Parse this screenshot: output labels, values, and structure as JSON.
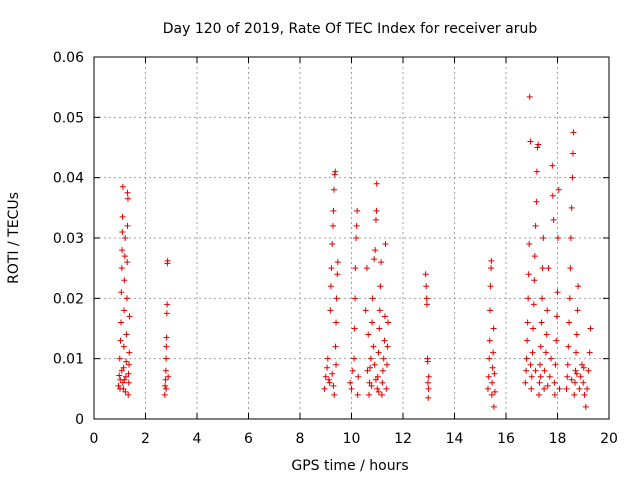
{
  "chart_data": {
    "type": "scatter",
    "title": "Day 120 of 2019, Rate Of TEC Index for receiver arub",
    "xlabel": "GPS time / hours",
    "ylabel": "ROTI / TECUs",
    "xlim": [
      0,
      20
    ],
    "ylim": [
      0,
      0.06
    ],
    "xticks": [
      "0",
      "2",
      "4",
      "6",
      "8",
      "10",
      "12",
      "14",
      "16",
      "18",
      "20"
    ],
    "yticks": [
      "0",
      "0.01",
      "0.02",
      "0.03",
      "0.04",
      "0.05",
      "0.06"
    ],
    "grid": true,
    "marker": "+",
    "color": "#e00000",
    "series": [
      {
        "points": [
          [
            0.95,
            0.0055
          ],
          [
            0.98,
            0.0072
          ],
          [
            1.0,
            0.01
          ],
          [
            1.02,
            0.0065
          ],
          [
            1.03,
            0.013
          ],
          [
            1.05,
            0.016
          ],
          [
            1.06,
            0.021
          ],
          [
            1.08,
            0.025
          ],
          [
            1.09,
            0.028
          ],
          [
            1.1,
            0.031
          ],
          [
            1.11,
            0.0335
          ],
          [
            1.12,
            0.0385
          ],
          [
            1.14,
            0.005
          ],
          [
            1.15,
            0.0085
          ],
          [
            1.16,
            0.012
          ],
          [
            1.17,
            0.018
          ],
          [
            1.18,
            0.023
          ],
          [
            1.2,
            0.027
          ],
          [
            1.21,
            0.03
          ],
          [
            1.22,
            0.0045
          ],
          [
            1.24,
            0.007
          ],
          [
            1.25,
            0.0095
          ],
          [
            1.26,
            0.014
          ],
          [
            1.28,
            0.02
          ],
          [
            1.29,
            0.026
          ],
          [
            1.3,
            0.032
          ],
          [
            1.32,
            0.0365
          ],
          [
            1.33,
            0.004
          ],
          [
            1.35,
            0.006
          ],
          [
            1.36,
            0.009
          ],
          [
            1.37,
            0.011
          ],
          [
            1.38,
            0.017
          ],
          [
            1.3,
            0.0375
          ],
          [
            1.12,
            0.006
          ],
          [
            1.08,
            0.008
          ],
          [
            1.18,
            0.0065
          ],
          [
            1.34,
            0.0075
          ],
          [
            1.01,
            0.005
          ],
          [
            2.75,
            0.004
          ],
          [
            2.76,
            0.0055
          ],
          [
            2.78,
            0.0065
          ],
          [
            2.79,
            0.008
          ],
          [
            2.8,
            0.01
          ],
          [
            2.81,
            0.012
          ],
          [
            2.82,
            0.0135
          ],
          [
            2.83,
            0.0175
          ],
          [
            2.84,
            0.019
          ],
          [
            2.85,
            0.0258
          ],
          [
            2.86,
            0.0262
          ],
          [
            2.8,
            0.005
          ],
          [
            2.88,
            0.007
          ],
          [
            8.95,
            0.005
          ],
          [
            9.0,
            0.007
          ],
          [
            9.05,
            0.0085
          ],
          [
            9.08,
            0.01
          ],
          [
            9.12,
            0.0065
          ],
          [
            9.18,
            0.018
          ],
          [
            9.2,
            0.022
          ],
          [
            9.22,
            0.025
          ],
          [
            9.25,
            0.029
          ],
          [
            9.28,
            0.032
          ],
          [
            9.3,
            0.0345
          ],
          [
            9.32,
            0.038
          ],
          [
            9.35,
            0.0405
          ],
          [
            9.37,
            0.041
          ],
          [
            9.33,
            0.004
          ],
          [
            9.38,
            0.012
          ],
          [
            9.4,
            0.016
          ],
          [
            9.42,
            0.02
          ],
          [
            9.45,
            0.024
          ],
          [
            9.47,
            0.026
          ],
          [
            9.3,
            0.0055
          ],
          [
            9.4,
            0.009
          ],
          [
            9.25,
            0.0075
          ],
          [
            9.15,
            0.006
          ],
          [
            9.95,
            0.006
          ],
          [
            10.0,
            0.005
          ],
          [
            10.05,
            0.008
          ],
          [
            10.1,
            0.01
          ],
          [
            10.12,
            0.015
          ],
          [
            10.14,
            0.02
          ],
          [
            10.15,
            0.025
          ],
          [
            10.18,
            0.03
          ],
          [
            10.2,
            0.032
          ],
          [
            10.22,
            0.0345
          ],
          [
            10.24,
            0.004
          ],
          [
            10.26,
            0.007
          ],
          [
            10.55,
            0.018
          ],
          [
            10.6,
            0.025
          ],
          [
            10.62,
            0.008
          ],
          [
            10.65,
            0.014
          ],
          [
            10.68,
            0.004
          ],
          [
            10.7,
            0.006
          ],
          [
            10.75,
            0.01
          ],
          [
            10.8,
            0.016
          ],
          [
            10.82,
            0.02
          ],
          [
            10.85,
            0.012
          ],
          [
            10.88,
            0.0265
          ],
          [
            10.9,
            0.009
          ],
          [
            10.92,
            0.028
          ],
          [
            10.95,
            0.033
          ],
          [
            10.97,
            0.0345
          ],
          [
            10.98,
            0.039
          ],
          [
            11.0,
            0.005
          ],
          [
            11.02,
            0.007
          ],
          [
            11.05,
            0.011
          ],
          [
            11.08,
            0.015
          ],
          [
            11.1,
            0.018
          ],
          [
            11.12,
            0.022
          ],
          [
            11.15,
            0.026
          ],
          [
            11.18,
            0.004
          ],
          [
            11.2,
            0.006
          ],
          [
            11.22,
            0.008
          ],
          [
            11.25,
            0.01
          ],
          [
            11.28,
            0.013
          ],
          [
            11.3,
            0.017
          ],
          [
            11.32,
            0.029
          ],
          [
            11.35,
            0.005
          ],
          [
            11.38,
            0.009
          ],
          [
            11.4,
            0.012
          ],
          [
            11.42,
            0.016
          ],
          [
            10.78,
            0.0055
          ],
          [
            10.95,
            0.0065
          ],
          [
            11.06,
            0.0045
          ],
          [
            10.72,
            0.0085
          ],
          [
            12.88,
            0.024
          ],
          [
            12.9,
            0.022
          ],
          [
            12.92,
            0.02
          ],
          [
            12.93,
            0.019
          ],
          [
            12.95,
            0.01
          ],
          [
            12.96,
            0.0095
          ],
          [
            12.97,
            0.006
          ],
          [
            12.98,
            0.0035
          ],
          [
            12.99,
            0.005
          ],
          [
            13.0,
            0.007
          ],
          [
            15.3,
            0.005
          ],
          [
            15.33,
            0.007
          ],
          [
            15.35,
            0.01
          ],
          [
            15.37,
            0.013
          ],
          [
            15.38,
            0.018
          ],
          [
            15.4,
            0.022
          ],
          [
            15.42,
            0.025
          ],
          [
            15.43,
            0.0262
          ],
          [
            15.45,
            0.004
          ],
          [
            15.46,
            0.006
          ],
          [
            15.48,
            0.0085
          ],
          [
            15.5,
            0.011
          ],
          [
            15.52,
            0.015
          ],
          [
            15.53,
            0.002
          ],
          [
            15.55,
            0.0075
          ],
          [
            15.57,
            0.0045
          ],
          [
            16.75,
            0.006
          ],
          [
            16.78,
            0.008
          ],
          [
            16.8,
            0.01
          ],
          [
            16.82,
            0.013
          ],
          [
            16.84,
            0.016
          ],
          [
            16.86,
            0.02
          ],
          [
            16.88,
            0.024
          ],
          [
            16.9,
            0.029
          ],
          [
            16.92,
            0.0534
          ],
          [
            16.95,
            0.046
          ],
          [
            16.98,
            0.005
          ],
          [
            17.0,
            0.007
          ],
          [
            17.03,
            0.011
          ],
          [
            17.05,
            0.015
          ],
          [
            17.08,
            0.019
          ],
          [
            17.1,
            0.023
          ],
          [
            17.12,
            0.027
          ],
          [
            17.15,
            0.032
          ],
          [
            17.18,
            0.036
          ],
          [
            17.2,
            0.041
          ],
          [
            17.22,
            0.045
          ],
          [
            17.25,
            0.0455
          ],
          [
            17.28,
            0.004
          ],
          [
            17.3,
            0.006
          ],
          [
            17.32,
            0.009
          ],
          [
            17.35,
            0.012
          ],
          [
            17.38,
            0.016
          ],
          [
            17.4,
            0.02
          ],
          [
            17.42,
            0.025
          ],
          [
            17.45,
            0.03
          ],
          [
            17.48,
            0.005
          ],
          [
            17.5,
            0.008
          ],
          [
            17.55,
            0.011
          ],
          [
            17.58,
            0.014
          ],
          [
            17.6,
            0.018
          ],
          [
            17.65,
            0.025
          ],
          [
            17.7,
            0.007
          ],
          [
            17.75,
            0.01
          ],
          [
            17.8,
            0.042
          ],
          [
            17.82,
            0.037
          ],
          [
            17.85,
            0.033
          ],
          [
            17.88,
            0.006
          ],
          [
            17.9,
            0.004
          ],
          [
            17.92,
            0.009
          ],
          [
            17.95,
            0.013
          ],
          [
            17.98,
            0.017
          ],
          [
            18.0,
            0.021
          ],
          [
            18.02,
            0.03
          ],
          [
            18.05,
            0.038
          ],
          [
            18.08,
            0.005
          ],
          [
            17.15,
            0.008
          ],
          [
            17.35,
            0.007
          ],
          [
            17.62,
            0.0055
          ],
          [
            16.95,
            0.009
          ],
          [
            18.35,
            0.005
          ],
          [
            18.38,
            0.007
          ],
          [
            18.4,
            0.009
          ],
          [
            18.42,
            0.012
          ],
          [
            18.45,
            0.016
          ],
          [
            18.48,
            0.02
          ],
          [
            18.5,
            0.025
          ],
          [
            18.52,
            0.03
          ],
          [
            18.55,
            0.035
          ],
          [
            18.58,
            0.04
          ],
          [
            18.6,
            0.044
          ],
          [
            18.62,
            0.0475
          ],
          [
            18.65,
            0.004
          ],
          [
            18.68,
            0.006
          ],
          [
            18.7,
            0.008
          ],
          [
            18.72,
            0.011
          ],
          [
            18.75,
            0.014
          ],
          [
            18.78,
            0.018
          ],
          [
            18.8,
            0.022
          ],
          [
            18.85,
            0.005
          ],
          [
            18.9,
            0.007
          ],
          [
            18.95,
            0.009
          ],
          [
            19.0,
            0.006
          ],
          [
            19.05,
            0.004
          ],
          [
            19.1,
            0.002
          ],
          [
            19.15,
            0.005
          ],
          [
            19.2,
            0.008
          ],
          [
            19.25,
            0.011
          ],
          [
            19.28,
            0.015
          ],
          [
            18.55,
            0.0065
          ],
          [
            18.75,
            0.0075
          ],
          [
            19.02,
            0.0085
          ]
        ]
      }
    ]
  }
}
